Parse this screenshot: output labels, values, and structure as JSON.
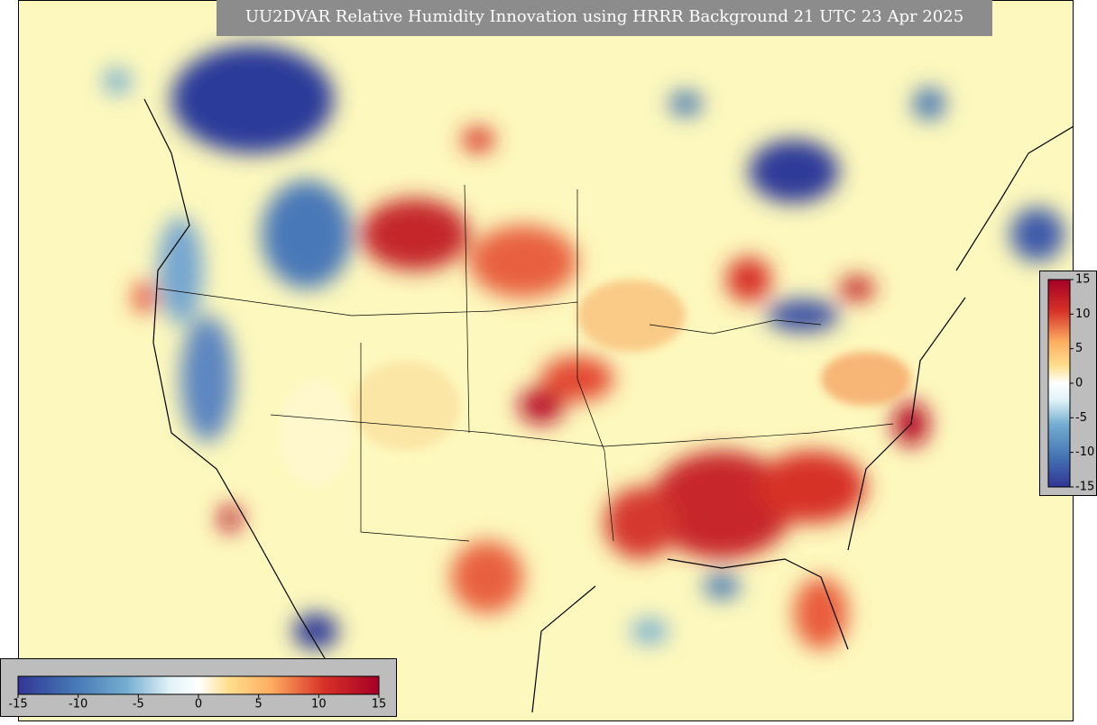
{
  "title": "UU2DVAR Relative Humidity Innovation using HRRR Background 21 UTC 23 Apr 2025",
  "colorbar": {
    "range": [
      -15,
      15
    ],
    "ticks": [
      -15,
      -10,
      -5,
      0,
      5,
      10,
      15
    ]
  }
}
